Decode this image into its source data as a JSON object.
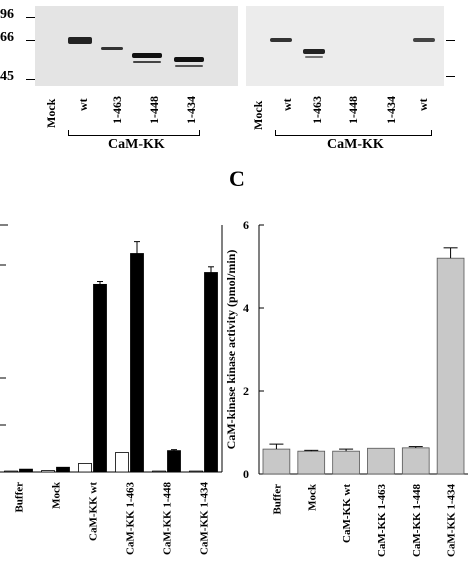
{
  "blot_left": {
    "mw_markers": [
      "96",
      "66",
      "45"
    ],
    "lanes": [
      "Mock",
      "wt",
      "1-463",
      "1-448",
      "1-434"
    ],
    "group_label": "CaM-KK"
  },
  "blot_right": {
    "lanes": [
      "Mock",
      "wt",
      "1-463",
      "1-448",
      "1-434",
      "wt"
    ],
    "group_label": "CaM-KK"
  },
  "panel_c_letter": "C",
  "chart_data": [
    {
      "type": "bar",
      "title": "",
      "xlabel": "",
      "ylabel": "",
      "categories": [
        "Buffer",
        "Mock",
        "CaM-KK wt",
        "CaM-KK 1-463",
        "CaM-KK 1-448",
        "CaM-KK 1-434"
      ],
      "series": [
        {
          "values": [
            0.2,
            0.3,
            1.8,
            4.1,
            0.2,
            0.2
          ]
        },
        {
          "values": [
            0.6,
            1.0,
            39.5,
            46.0,
            4.5,
            42.0
          ]
        }
      ],
      "ylim": [
        0,
        52
      ],
      "errors": [
        [
          0,
          0,
          0,
          0,
          0,
          0
        ],
        [
          0,
          0,
          0.6,
          2.5,
          0.2,
          1.2
        ]
      ],
      "colors": [
        "#ffffff",
        "#000000"
      ]
    },
    {
      "type": "bar",
      "title": "",
      "xlabel": "",
      "ylabel": "CaM-kinase kinase activity (pmol/min)",
      "categories": [
        "Buffer",
        "Mock",
        "CaM-KK wt",
        "CaM-KK 1-463",
        "CaM-KK 1-448",
        "CaM-KK 1-434"
      ],
      "values": [
        0.6,
        0.55,
        0.55,
        0.62,
        0.63,
        5.2
      ],
      "errors": [
        0.12,
        0.02,
        0.05,
        0.0,
        0.03,
        0.25
      ],
      "yticks": [
        "0",
        "2",
        "4",
        "6"
      ],
      "ylim": [
        0,
        6
      ],
      "color": "#c8c8c8"
    }
  ]
}
